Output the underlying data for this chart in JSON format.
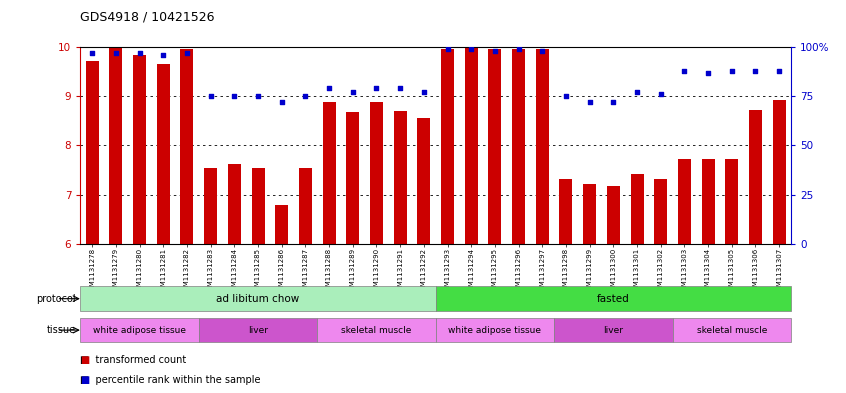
{
  "title": "GDS4918 / 10421526",
  "samples": [
    "GSM1131278",
    "GSM1131279",
    "GSM1131280",
    "GSM1131281",
    "GSM1131282",
    "GSM1131283",
    "GSM1131284",
    "GSM1131285",
    "GSM1131286",
    "GSM1131287",
    "GSM1131288",
    "GSM1131289",
    "GSM1131290",
    "GSM1131291",
    "GSM1131292",
    "GSM1131293",
    "GSM1131294",
    "GSM1131295",
    "GSM1131296",
    "GSM1131297",
    "GSM1131298",
    "GSM1131299",
    "GSM1131300",
    "GSM1131301",
    "GSM1131302",
    "GSM1131303",
    "GSM1131304",
    "GSM1131305",
    "GSM1131306",
    "GSM1131307"
  ],
  "bar_values": [
    9.72,
    9.99,
    9.85,
    9.65,
    9.97,
    7.55,
    7.63,
    7.55,
    6.78,
    7.55,
    8.88,
    8.68,
    8.88,
    8.7,
    8.55,
    9.97,
    10.05,
    9.97,
    9.97,
    9.97,
    7.32,
    7.22,
    7.18,
    7.42,
    7.32,
    7.72,
    7.72,
    7.72,
    8.72,
    8.92
  ],
  "percentile_values": [
    97,
    97,
    97,
    96,
    97,
    75,
    75,
    75,
    72,
    75,
    79,
    77,
    79,
    79,
    77,
    99,
    99,
    98,
    99,
    98,
    75,
    72,
    72,
    77,
    76,
    88,
    87,
    88,
    88,
    88
  ],
  "bar_color": "#cc0000",
  "dot_color": "#0000cc",
  "y_min": 6,
  "y_max": 10,
  "protocol_groups": [
    {
      "label": "ad libitum chow",
      "start": 0,
      "end": 14,
      "color": "#aaeebb"
    },
    {
      "label": "fasted",
      "start": 15,
      "end": 29,
      "color": "#44dd44"
    }
  ],
  "tissue_groups": [
    {
      "label": "white adipose tissue",
      "start": 0,
      "end": 4,
      "color": "#ee88ee"
    },
    {
      "label": "liver",
      "start": 5,
      "end": 9,
      "color": "#cc55cc"
    },
    {
      "label": "skeletal muscle",
      "start": 10,
      "end": 14,
      "color": "#ee88ee"
    },
    {
      "label": "white adipose tissue",
      "start": 15,
      "end": 19,
      "color": "#ee88ee"
    },
    {
      "label": "liver",
      "start": 20,
      "end": 24,
      "color": "#cc55cc"
    },
    {
      "label": "skeletal muscle",
      "start": 25,
      "end": 29,
      "color": "#ee88ee"
    }
  ]
}
